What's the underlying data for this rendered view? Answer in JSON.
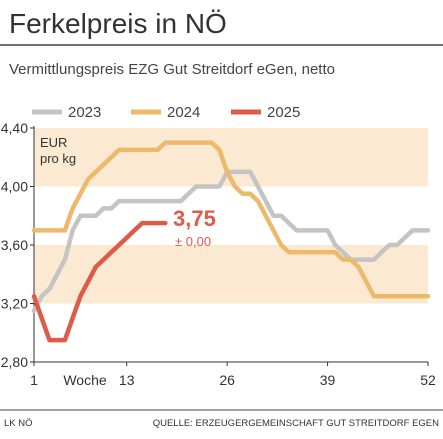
{
  "chart_data": {
    "type": "line",
    "title": "Ferkelpreis in NÖ",
    "subtitle": "Vermittlungspreis EZG Gut Streitdorf eGen, netto",
    "ylabel_line1": "EUR",
    "ylabel_line2": "pro kg",
    "xlabel": "Woche",
    "x_ticks": [
      1,
      13,
      26,
      39,
      52
    ],
    "y_ticks": [
      "2,80",
      "3,20",
      "3,60",
      "4,00",
      "4,40"
    ],
    "ylim": [
      2.8,
      4.4
    ],
    "xlim": [
      1,
      52
    ],
    "grid": "alternating horizontal bands",
    "legend_position": "top",
    "annotation": {
      "value": "3,75",
      "change": "± 0,00",
      "week": 18
    },
    "series": [
      {
        "name": "2023",
        "color": "#c4c4c4",
        "points": [
          [
            1,
            3.15
          ],
          [
            2,
            3.25
          ],
          [
            3,
            3.3
          ],
          [
            4,
            3.4
          ],
          [
            5,
            3.5
          ],
          [
            6,
            3.7
          ],
          [
            7,
            3.8
          ],
          [
            8,
            3.8
          ],
          [
            9,
            3.8
          ],
          [
            10,
            3.85
          ],
          [
            11,
            3.85
          ],
          [
            12,
            3.9
          ],
          [
            13,
            3.9
          ],
          [
            14,
            3.9
          ],
          [
            15,
            3.9
          ],
          [
            16,
            3.9
          ],
          [
            17,
            3.9
          ],
          [
            18,
            3.9
          ],
          [
            19,
            3.9
          ],
          [
            20,
            3.9
          ],
          [
            21,
            3.95
          ],
          [
            22,
            4.0
          ],
          [
            23,
            4.0
          ],
          [
            24,
            4.0
          ],
          [
            25,
            4.0
          ],
          [
            26,
            4.1
          ],
          [
            27,
            4.1
          ],
          [
            28,
            4.1
          ],
          [
            29,
            4.1
          ],
          [
            30,
            4.0
          ],
          [
            31,
            3.9
          ],
          [
            32,
            3.8
          ],
          [
            33,
            3.8
          ],
          [
            34,
            3.75
          ],
          [
            35,
            3.7
          ],
          [
            36,
            3.7
          ],
          [
            37,
            3.7
          ],
          [
            38,
            3.7
          ],
          [
            39,
            3.7
          ],
          [
            40,
            3.6
          ],
          [
            41,
            3.55
          ],
          [
            42,
            3.5
          ],
          [
            43,
            3.5
          ],
          [
            44,
            3.5
          ],
          [
            45,
            3.5
          ],
          [
            46,
            3.55
          ],
          [
            47,
            3.6
          ],
          [
            48,
            3.6
          ],
          [
            49,
            3.65
          ],
          [
            50,
            3.7
          ],
          [
            51,
            3.7
          ],
          [
            52,
            3.7
          ]
        ]
      },
      {
        "name": "2024",
        "color": "#edb96b",
        "points": [
          [
            1,
            3.7
          ],
          [
            2,
            3.7
          ],
          [
            3,
            3.7
          ],
          [
            4,
            3.7
          ],
          [
            5,
            3.7
          ],
          [
            6,
            3.85
          ],
          [
            7,
            3.95
          ],
          [
            8,
            4.05
          ],
          [
            9,
            4.1
          ],
          [
            10,
            4.15
          ],
          [
            11,
            4.2
          ],
          [
            12,
            4.25
          ],
          [
            13,
            4.25
          ],
          [
            14,
            4.25
          ],
          [
            15,
            4.25
          ],
          [
            16,
            4.25
          ],
          [
            17,
            4.25
          ],
          [
            18,
            4.3
          ],
          [
            19,
            4.3
          ],
          [
            20,
            4.3
          ],
          [
            21,
            4.3
          ],
          [
            22,
            4.3
          ],
          [
            23,
            4.3
          ],
          [
            24,
            4.3
          ],
          [
            25,
            4.25
          ],
          [
            26,
            4.1
          ],
          [
            27,
            4.0
          ],
          [
            28,
            3.95
          ],
          [
            29,
            3.95
          ],
          [
            30,
            3.9
          ],
          [
            31,
            3.8
          ],
          [
            32,
            3.7
          ],
          [
            33,
            3.6
          ],
          [
            34,
            3.55
          ],
          [
            35,
            3.55
          ],
          [
            36,
            3.55
          ],
          [
            37,
            3.55
          ],
          [
            38,
            3.55
          ],
          [
            39,
            3.55
          ],
          [
            40,
            3.55
          ],
          [
            41,
            3.5
          ],
          [
            42,
            3.5
          ],
          [
            43,
            3.45
          ],
          [
            44,
            3.35
          ],
          [
            45,
            3.25
          ],
          [
            46,
            3.25
          ],
          [
            47,
            3.25
          ],
          [
            48,
            3.25
          ],
          [
            49,
            3.25
          ],
          [
            50,
            3.25
          ],
          [
            51,
            3.25
          ],
          [
            52,
            3.25
          ]
        ]
      },
      {
        "name": "2025",
        "color": "#de5b4b",
        "points": [
          [
            1,
            3.25
          ],
          [
            2,
            3.1
          ],
          [
            3,
            2.95
          ],
          [
            4,
            2.95
          ],
          [
            5,
            2.95
          ],
          [
            6,
            3.1
          ],
          [
            7,
            3.25
          ],
          [
            8,
            3.35
          ],
          [
            9,
            3.45
          ],
          [
            10,
            3.5
          ],
          [
            11,
            3.55
          ],
          [
            12,
            3.6
          ],
          [
            13,
            3.65
          ],
          [
            14,
            3.7
          ],
          [
            15,
            3.75
          ],
          [
            16,
            3.75
          ],
          [
            17,
            3.75
          ],
          [
            18,
            3.75
          ]
        ]
      }
    ]
  },
  "footer": {
    "left": "LK NÖ",
    "right": "QUELLE: ERZEUGERGEMEINSCHAFT GUT STREITDORF EGEN"
  }
}
